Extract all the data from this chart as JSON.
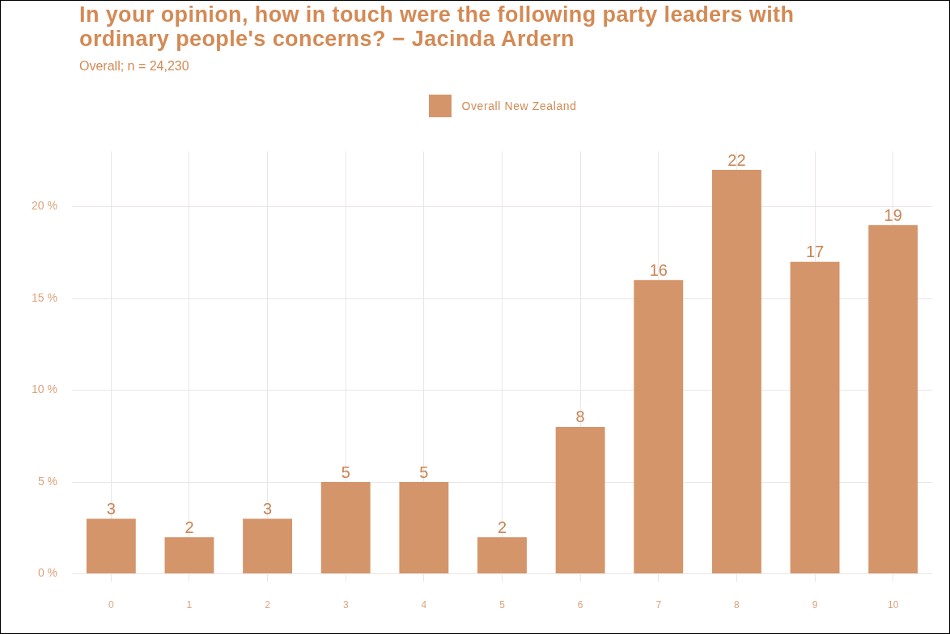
{
  "chart_data": {
    "type": "bar",
    "title": "In your opinion, how in touch were the following party leaders with ordinary people's concerns? − Jacinda Ardern",
    "subtitle": "Overall; n = 24,230",
    "categories": [
      "0",
      "1",
      "2",
      "3",
      "4",
      "5",
      "6",
      "7",
      "8",
      "9",
      "10"
    ],
    "series": [
      {
        "name": "Overall New Zealand",
        "color": "#d4956a",
        "values": [
          3,
          2,
          3,
          5,
          5,
          2,
          8,
          16,
          22,
          17,
          19
        ]
      }
    ],
    "ylim": [
      0,
      23
    ],
    "yticks": [
      {
        "value": 0,
        "label": "0 %"
      },
      {
        "value": 5,
        "label": "5 %"
      },
      {
        "value": 10,
        "label": "10 %"
      },
      {
        "value": 15,
        "label": "15 %"
      },
      {
        "value": 20,
        "label": "20 %"
      }
    ],
    "grid": true,
    "legend": "top",
    "data_labels": true
  }
}
